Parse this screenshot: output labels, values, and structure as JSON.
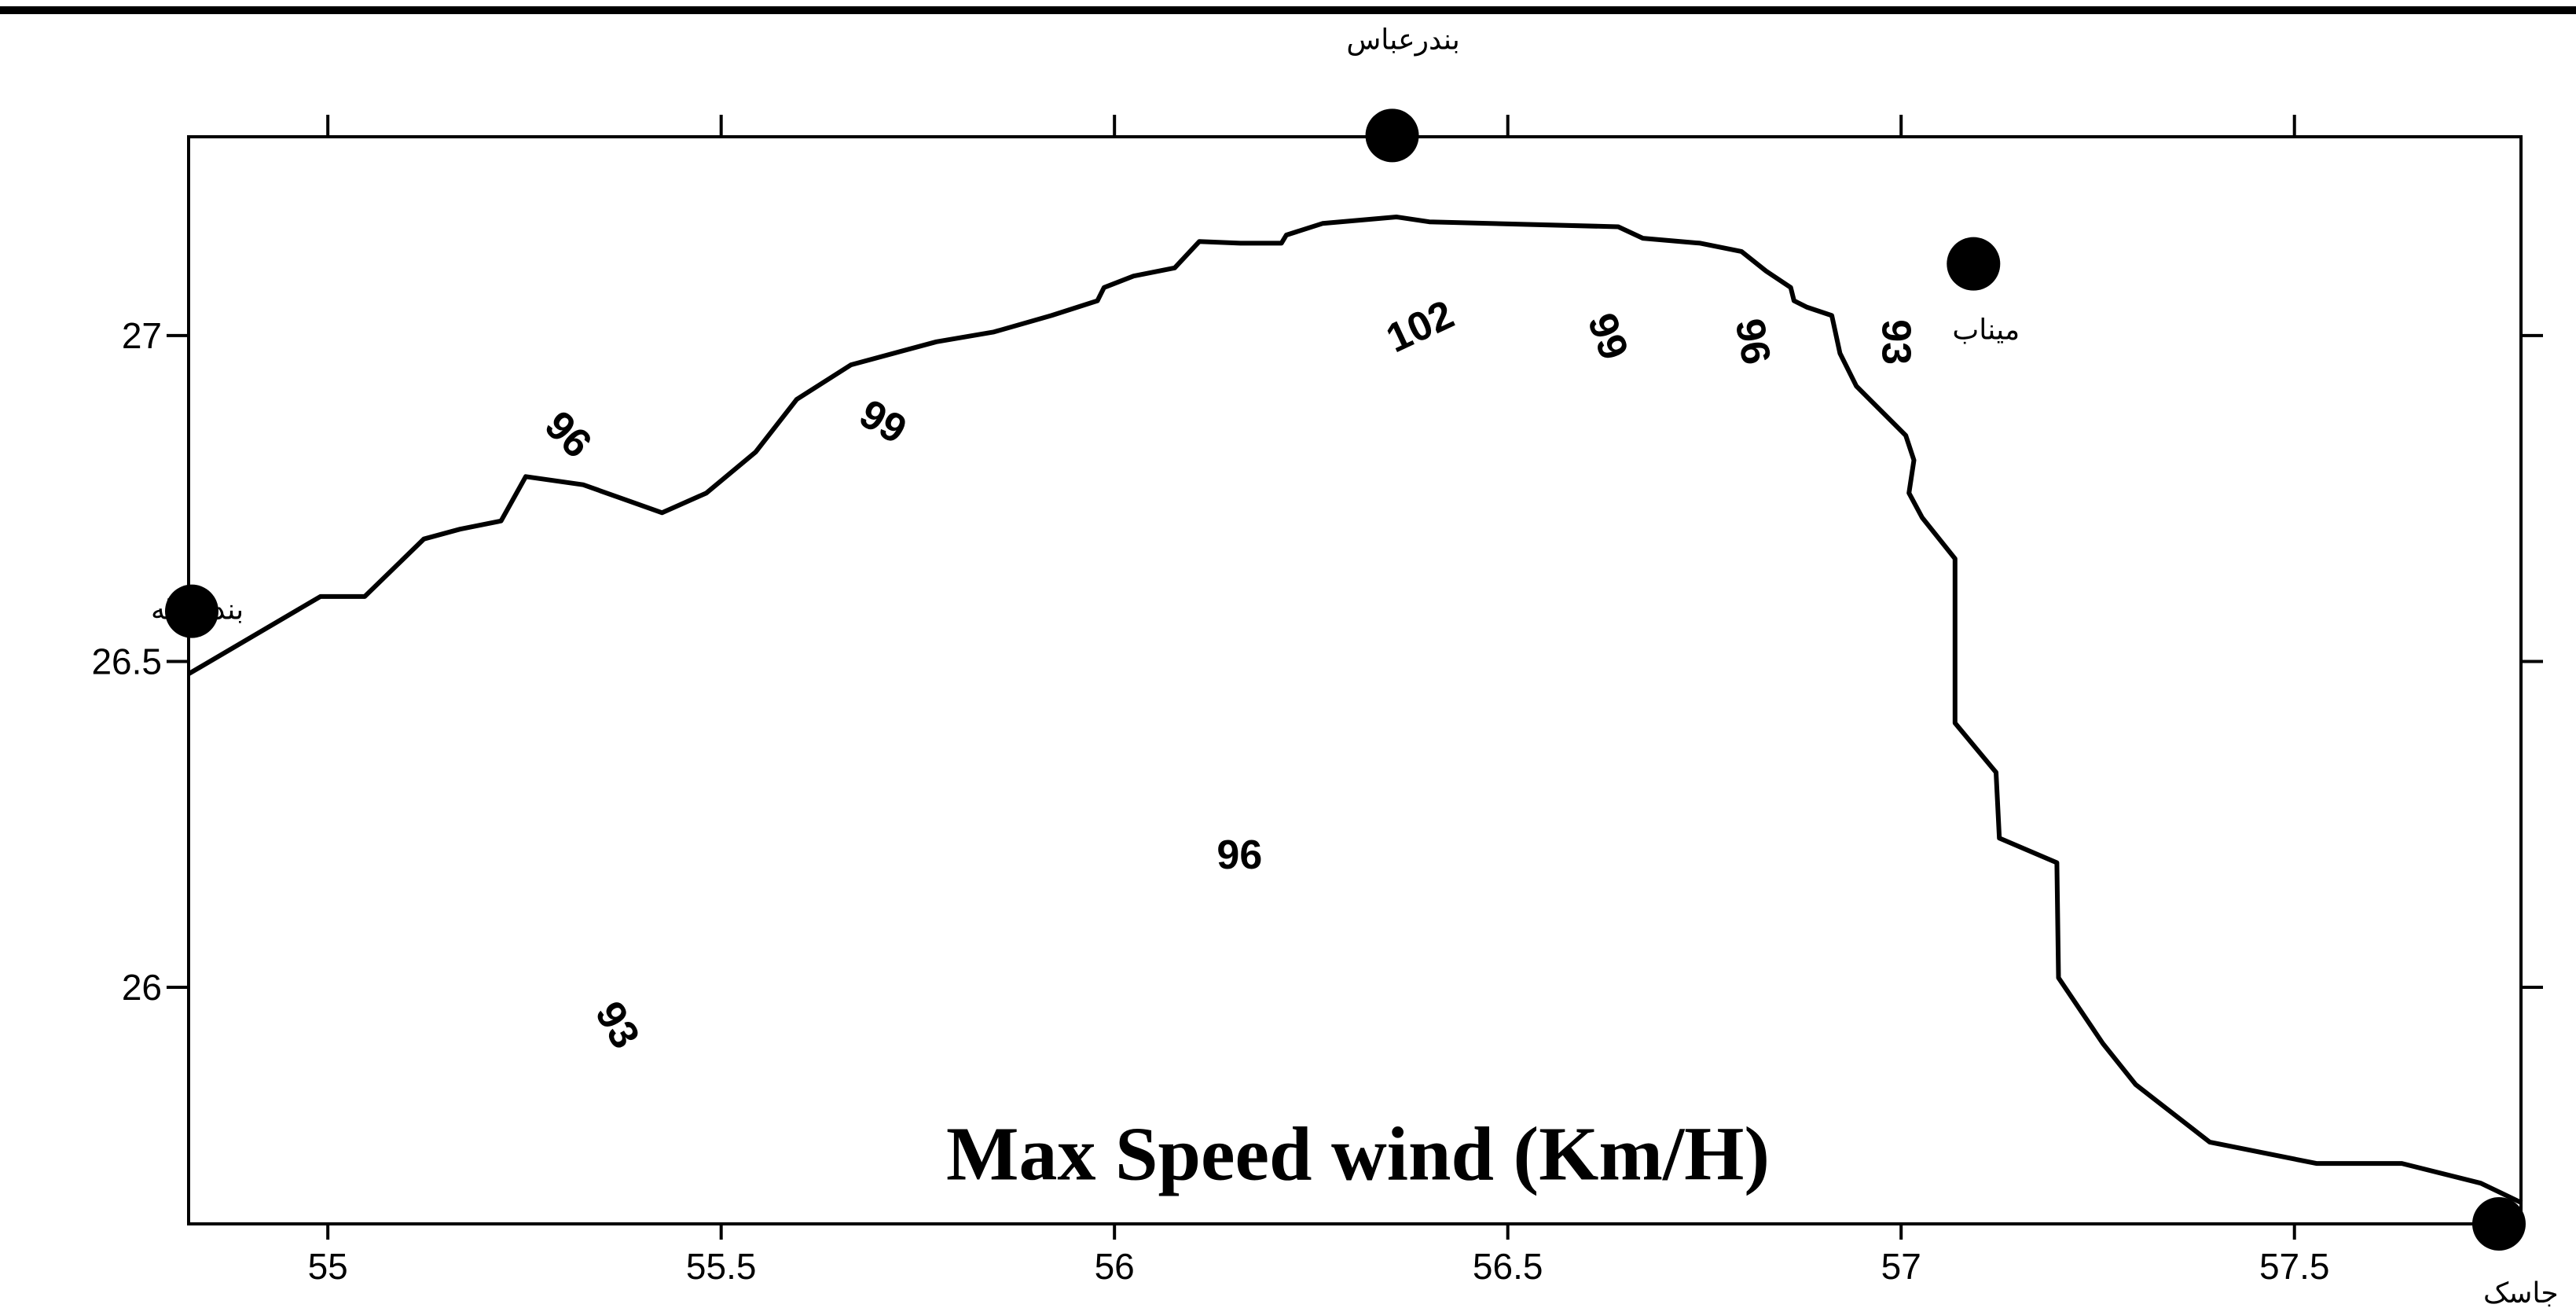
{
  "chart_data": {
    "type": "map",
    "title": "Max Speed wind (Km/H)",
    "xlim": [
      54.823,
      57.788
    ],
    "ylim": [
      25.637,
      27.305
    ],
    "xticks": [
      55,
      55.5,
      56,
      56.5,
      57,
      57.5
    ],
    "yticks": [
      26,
      26.5,
      27
    ],
    "cities": [
      {
        "name": "بندرعباس",
        "lon": 56.353,
        "lat": 27.307
      },
      {
        "name": "میناب",
        "lon": 57.092,
        "lat": 27.11
      },
      {
        "name": "بندرلنگه",
        "lon": 54.827,
        "lat": 26.577
      },
      {
        "name": "جاسک",
        "lon": 57.76,
        "lat": 25.637
      }
    ],
    "contour_labels": [
      {
        "value": 96,
        "lon": 55.303,
        "lat": 26.845
      },
      {
        "value": 99,
        "lon": 55.704,
        "lat": 26.864
      },
      {
        "value": 102,
        "lon": 56.39,
        "lat": 27.01
      },
      {
        "value": 99,
        "lon": 56.624,
        "lat": 26.997
      },
      {
        "value": 96,
        "lon": 56.808,
        "lat": 26.99
      },
      {
        "value": 93,
        "lon": 56.99,
        "lat": 26.99
      },
      {
        "value": 96,
        "lon": 56.159,
        "lat": 26.199
      },
      {
        "value": 93,
        "lon": 55.365,
        "lat": 25.94
      }
    ]
  }
}
